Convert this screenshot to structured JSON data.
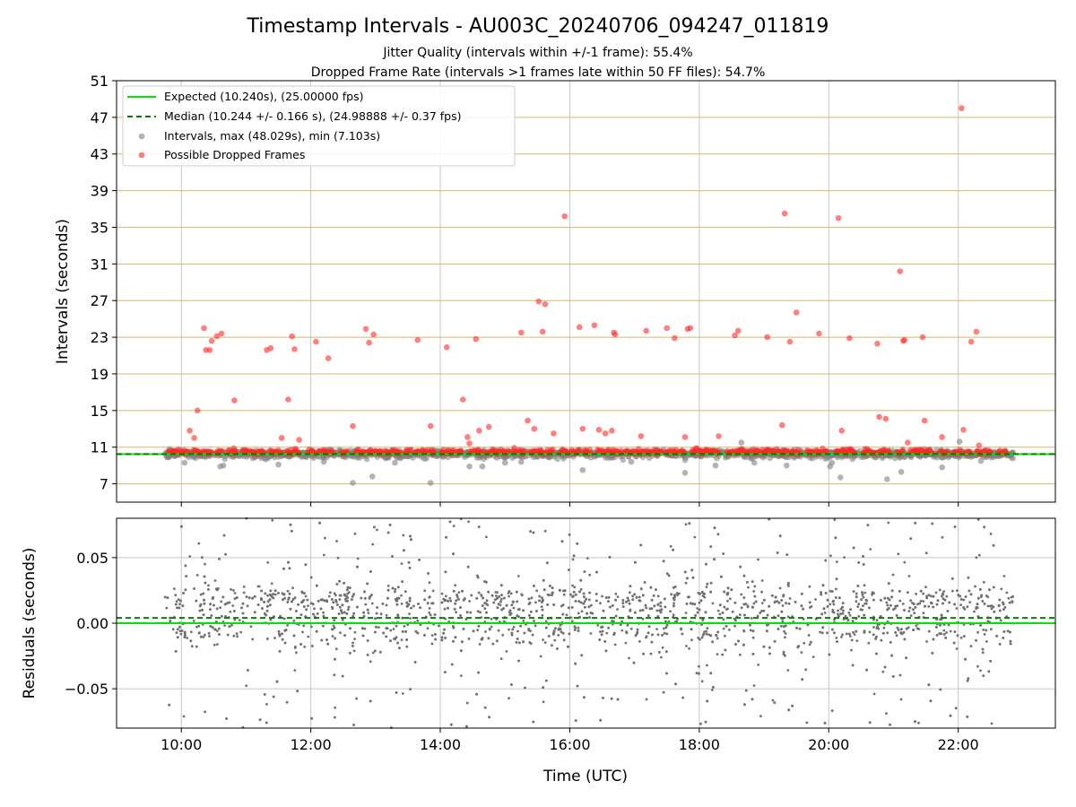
{
  "chart_data": [
    {
      "type": "scatter",
      "title": "Timestamp Intervals - AU003C_20240706_094247_011819",
      "subtitle_lines": [
        "Jitter Quality (intervals within +/-1 frame): 55.4%",
        "Dropped Frame Rate (intervals >1 frames late within 50 FF files): 54.7%"
      ],
      "xlabel": "",
      "ylabel": "Intervals (seconds)",
      "xlim_hours": [
        9.0,
        23.5
      ],
      "ylim": [
        5,
        51
      ],
      "yticks": [
        7,
        11,
        15,
        19,
        23,
        27,
        31,
        35,
        39,
        43,
        47,
        51
      ],
      "ytick_labels": [
        "7",
        "11",
        "15",
        "19",
        "23",
        "27",
        "31",
        "35",
        "39",
        "43",
        "47",
        "51"
      ],
      "hlines_color": "#d4b96a",
      "vgrid": true,
      "legend_position": "top-left",
      "legend": [
        "Expected (10.240s), (25.00000 fps)",
        "Median (10.244 +/- 0.166 s), (24.98888 +/- 0.37 fps)",
        "Intervals, max (48.029s), min (7.103s)",
        "Possible Dropped Frames"
      ],
      "expected": 10.24,
      "median": 10.244,
      "colors": {
        "expected": "#00e400",
        "median": "#008000",
        "intervals": "#808080",
        "dropped": "#ff2a2a"
      },
      "dropped_outliers": [
        [
          10.13,
          12.8
        ],
        [
          10.2,
          12.0
        ],
        [
          10.25,
          15.0
        ],
        [
          10.35,
          24.0
        ],
        [
          10.38,
          21.6
        ],
        [
          10.44,
          21.6
        ],
        [
          10.47,
          22.6
        ],
        [
          10.55,
          23.1
        ],
        [
          10.62,
          23.4
        ],
        [
          10.82,
          16.1
        ],
        [
          11.32,
          21.6
        ],
        [
          11.38,
          21.8
        ],
        [
          11.55,
          12.0
        ],
        [
          11.65,
          16.2
        ],
        [
          11.71,
          23.1
        ],
        [
          11.75,
          21.7
        ],
        [
          11.82,
          11.8
        ],
        [
          12.08,
          22.5
        ],
        [
          12.27,
          20.7
        ],
        [
          12.65,
          13.3
        ],
        [
          12.85,
          23.9
        ],
        [
          12.9,
          22.4
        ],
        [
          12.97,
          23.3
        ],
        [
          13.65,
          22.7
        ],
        [
          13.85,
          13.3
        ],
        [
          14.1,
          21.9
        ],
        [
          14.35,
          16.2
        ],
        [
          14.42,
          12.1
        ],
        [
          14.45,
          11.4
        ],
        [
          14.55,
          22.8
        ],
        [
          14.6,
          12.8
        ],
        [
          14.75,
          13.2
        ],
        [
          15.25,
          23.5
        ],
        [
          15.35,
          13.9
        ],
        [
          15.45,
          13.0
        ],
        [
          15.52,
          26.9
        ],
        [
          15.58,
          23.6
        ],
        [
          15.62,
          26.6
        ],
        [
          15.75,
          12.5
        ],
        [
          15.92,
          36.2
        ],
        [
          16.15,
          24.1
        ],
        [
          16.2,
          13.0
        ],
        [
          16.38,
          24.3
        ],
        [
          16.45,
          12.9
        ],
        [
          16.55,
          12.5
        ],
        [
          16.65,
          12.8
        ],
        [
          16.68,
          23.5
        ],
        [
          16.7,
          23.3
        ],
        [
          17.1,
          12.2
        ],
        [
          17.18,
          23.7
        ],
        [
          17.5,
          24.0
        ],
        [
          17.62,
          22.9
        ],
        [
          17.78,
          12.1
        ],
        [
          17.82,
          23.9
        ],
        [
          17.86,
          24.0
        ],
        [
          18.3,
          12.2
        ],
        [
          18.55,
          23.2
        ],
        [
          18.6,
          23.7
        ],
        [
          19.05,
          23.0
        ],
        [
          19.28,
          13.4
        ],
        [
          19.32,
          36.5
        ],
        [
          19.4,
          22.5
        ],
        [
          19.5,
          25.7
        ],
        [
          19.85,
          23.4
        ],
        [
          20.15,
          36.0
        ],
        [
          20.2,
          12.8
        ],
        [
          20.32,
          22.9
        ],
        [
          20.75,
          22.3
        ],
        [
          20.78,
          14.3
        ],
        [
          20.88,
          14.1
        ],
        [
          21.1,
          30.2
        ],
        [
          21.15,
          22.6
        ],
        [
          21.17,
          22.7
        ],
        [
          21.22,
          11.5
        ],
        [
          21.45,
          23.0
        ],
        [
          21.48,
          13.9
        ],
        [
          21.75,
          12.1
        ],
        [
          22.05,
          48.0
        ],
        [
          22.08,
          12.9
        ],
        [
          22.2,
          22.5
        ],
        [
          22.28,
          23.6
        ],
        [
          22.32,
          11.2
        ]
      ],
      "interval_outliers": [
        [
          9.82,
          10.8
        ],
        [
          10.05,
          9.3
        ],
        [
          10.6,
          8.9
        ],
        [
          10.65,
          9.0
        ],
        [
          11.5,
          9.1
        ],
        [
          12.2,
          9.4
        ],
        [
          12.45,
          10.7
        ],
        [
          12.65,
          7.1
        ],
        [
          12.95,
          7.8
        ],
        [
          13.3,
          9.3
        ],
        [
          13.85,
          7.1
        ],
        [
          14.45,
          8.9
        ],
        [
          14.65,
          8.9
        ],
        [
          15.0,
          9.3
        ],
        [
          15.25,
          9.4
        ],
        [
          16.2,
          8.5
        ],
        [
          16.95,
          9.4
        ],
        [
          17.78,
          8.2
        ],
        [
          18.25,
          9.0
        ],
        [
          18.65,
          11.5
        ],
        [
          18.85,
          9.3
        ],
        [
          19.35,
          9.0
        ],
        [
          20.02,
          8.9
        ],
        [
          20.05,
          9.3
        ],
        [
          20.18,
          7.7
        ],
        [
          20.9,
          7.5
        ],
        [
          21.12,
          8.3
        ],
        [
          21.75,
          8.8
        ],
        [
          22.02,
          11.6
        ],
        [
          22.35,
          9.5
        ]
      ]
    },
    {
      "type": "scatter",
      "title": "",
      "xlabel": "Time (UTC)",
      "ylabel": "Residuals (seconds)",
      "xlim_hours": [
        9.0,
        23.5
      ],
      "ylim": [
        -0.08,
        0.08
      ],
      "yticks": [
        -0.05,
        0.0,
        0.05
      ],
      "ytick_labels": [
        "−0.05",
        "0.00",
        "0.05"
      ],
      "xticks_hours": [
        10,
        12,
        14,
        16,
        18,
        20,
        22
      ],
      "xtick_labels": [
        "10:00",
        "12:00",
        "14:00",
        "16:00",
        "18:00",
        "20:00",
        "22:00"
      ],
      "grid": true,
      "expected_residual": 0.0,
      "median_residual": 0.004,
      "residual_range_hours": [
        9.75,
        22.85
      ],
      "colors": {
        "expected": "#00e400",
        "median": "#008000",
        "points": "#707070"
      }
    }
  ]
}
